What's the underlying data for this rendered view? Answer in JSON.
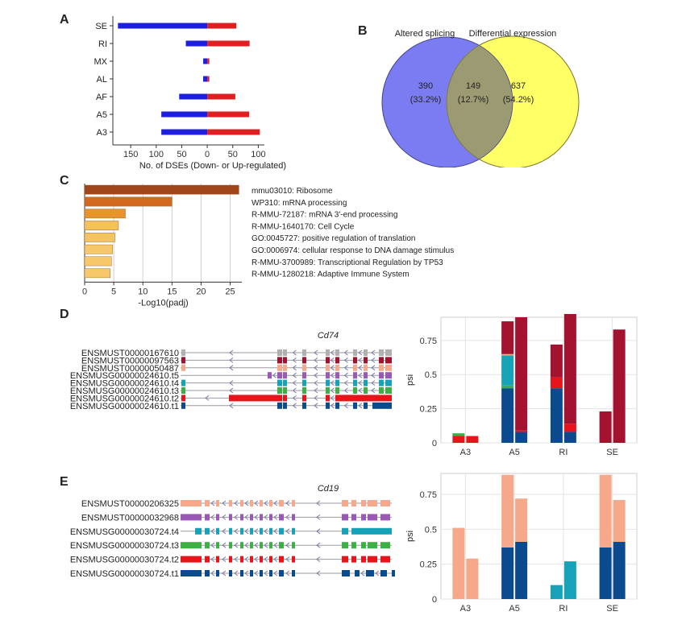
{
  "panels": {
    "A": "A",
    "B": "B",
    "C": "C",
    "D": "D",
    "E": "E"
  },
  "panelA": {
    "type": "bar",
    "categories": [
      "SE",
      "RI",
      "MX",
      "AL",
      "AF",
      "A5",
      "A3"
    ],
    "series": [
      {
        "name": "Down",
        "values": [
          -175,
          -42,
          -8,
          -8,
          -55,
          -90,
          -90
        ],
        "color": "#1f1fe0"
      },
      {
        "name": "Up",
        "values": [
          57,
          83,
          4,
          4,
          55,
          82,
          103
        ],
        "color": "#e02020"
      }
    ],
    "xticks": [
      -150,
      -100,
      -50,
      0,
      50,
      100
    ],
    "xtick_labels": [
      "150",
      "100",
      "50",
      "0",
      "50",
      "100"
    ],
    "xlim": [
      -185,
      112
    ],
    "xlabel": "No. of DSEs (Down- or Up-regulated)"
  },
  "panelB": {
    "type": "venn",
    "labels": [
      "Altered splicing",
      "Differential expression"
    ],
    "left_only": {
      "count": "390",
      "pct": "(33.2%)"
    },
    "overlap": {
      "count": "149",
      "pct": "(12.7%)"
    },
    "right_only": {
      "count": "637",
      "pct": "(54.2%)"
    },
    "colors": {
      "left": "#7b7bf2",
      "right": "#ffff66",
      "overlap": "#9b9a72"
    }
  },
  "panelC": {
    "type": "bar",
    "categories": [
      "mmu03010: Ribosome",
      "WP310: mRNA processing",
      "R-MMU-72187: mRNA 3'-end processing",
      "R-MMU-1640170: Cell Cycle",
      "GO:0045727: positive regulation of translation",
      "GO:0006974: cellular response to DNA damage stimulus",
      "R-MMU-3700989: Transcriptional Regulation by TP53",
      "R-MMU-1280218: Adaptive Immune System"
    ],
    "values": [
      26.5,
      15,
      7,
      5.8,
      5.2,
      4.8,
      4.6,
      4.4
    ],
    "colors": [
      "#a0461a",
      "#d2691e",
      "#e8932c",
      "#f5c15a",
      "#f5c462",
      "#f6c86a",
      "#f6c86a",
      "#f6c86a"
    ],
    "xticks": [
      0,
      5,
      10,
      15,
      20,
      25
    ],
    "xlim": [
      0,
      27
    ],
    "xlabel": "-Log10(padj)"
  },
  "panelD": {
    "gene": "Cd74",
    "transcripts": [
      {
        "label": "ENSMUST00000167610",
        "color": "#b0b0b0"
      },
      {
        "label": "ENSMUST00000097563",
        "color": "#a3122e"
      },
      {
        "label": "ENSMUST00000050487",
        "color": "#f5a98a"
      },
      {
        "label": "ENSMUSG00000024610.t5",
        "color": "#9b59b6"
      },
      {
        "label": "ENSMUSG00000024610.t4",
        "color": "#17a2b8"
      },
      {
        "label": "ENSMUSG00000024610.t3",
        "color": "#3cb043"
      },
      {
        "label": "ENSMUSG00000024610.t2",
        "color": "#e8141b"
      },
      {
        "label": "ENSMUSG00000024610.t1",
        "color": "#0b4a8c"
      }
    ],
    "chart": {
      "type": "bar",
      "ylabel": "psi",
      "categories": [
        "A3",
        "A5",
        "RI",
        "SE"
      ],
      "yticks": [
        0,
        0.25,
        0.5,
        0.75
      ],
      "ylim": [
        0,
        0.92
      ],
      "bars": [
        {
          "cat": "A3",
          "segments": [
            {
              "v": 0.05,
              "c": "#e8141b"
            },
            {
              "v": 0.02,
              "c": "#3cb043"
            }
          ]
        },
        {
          "cat": "A3",
          "segments": [
            {
              "v": 0.05,
              "c": "#e8141b"
            }
          ]
        },
        {
          "cat": "A5",
          "segments": [
            {
              "v": 0.4,
              "c": "#0b4a8c"
            },
            {
              "v": 0.02,
              "c": "#3cb043"
            },
            {
              "v": 0.22,
              "c": "#17a2b8"
            },
            {
              "v": 0.01,
              "c": "#f5a98a"
            },
            {
              "v": 0.24,
              "c": "#a3122e"
            }
          ]
        },
        {
          "cat": "A5",
          "segments": [
            {
              "v": 0.08,
              "c": "#0b4a8c"
            },
            {
              "v": 0.01,
              "c": "#e8141b"
            },
            {
              "v": 0.83,
              "c": "#a3122e"
            }
          ]
        },
        {
          "cat": "RI",
          "segments": [
            {
              "v": 0.4,
              "c": "#0b4a8c"
            },
            {
              "v": 0.08,
              "c": "#e8141b"
            },
            {
              "v": 0.24,
              "c": "#a3122e"
            }
          ]
        },
        {
          "cat": "RI",
          "segments": [
            {
              "v": 0.08,
              "c": "#0b4a8c"
            },
            {
              "v": 0.06,
              "c": "#e8141b"
            },
            {
              "v": 0.82,
              "c": "#a3122e"
            }
          ]
        },
        {
          "cat": "SE",
          "segments": [
            {
              "v": 0.23,
              "c": "#a3122e"
            }
          ]
        },
        {
          "cat": "SE",
          "segments": [
            {
              "v": 0.83,
              "c": "#a3122e"
            }
          ]
        }
      ]
    }
  },
  "panelE": {
    "gene": "Cd19",
    "transcripts": [
      {
        "label": "ENSMUST00000206325",
        "color": "#f5a98a"
      },
      {
        "label": "ENSMUST00000032968",
        "color": "#9b59b6"
      },
      {
        "label": "ENSMUSG00000030724.t4",
        "color": "#17a2b8"
      },
      {
        "label": "ENSMUSG00000030724.t3",
        "color": "#3cb043"
      },
      {
        "label": "ENSMUSG00000030724.t2",
        "color": "#e8141b"
      },
      {
        "label": "ENSMUSG00000030724.t1",
        "color": "#0b4a8c"
      }
    ],
    "chart": {
      "type": "bar",
      "ylabel": "psi",
      "categories": [
        "A3",
        "A5",
        "RI",
        "SE"
      ],
      "yticks": [
        0,
        0.25,
        0.5,
        0.75
      ],
      "ylim": [
        0,
        0.9
      ],
      "bars": [
        {
          "cat": "A3",
          "segments": [
            {
              "v": 0.51,
              "c": "#f5a98a"
            }
          ]
        },
        {
          "cat": "A3",
          "segments": [
            {
              "v": 0.29,
              "c": "#f5a98a"
            }
          ]
        },
        {
          "cat": "A5",
          "segments": [
            {
              "v": 0.37,
              "c": "#0b4a8c"
            },
            {
              "v": 0.52,
              "c": "#f5a98a"
            }
          ]
        },
        {
          "cat": "A5",
          "segments": [
            {
              "v": 0.41,
              "c": "#0b4a8c"
            },
            {
              "v": 0.31,
              "c": "#f5a98a"
            }
          ]
        },
        {
          "cat": "RI",
          "segments": [
            {
              "v": 0.1,
              "c": "#17a2b8"
            }
          ]
        },
        {
          "cat": "RI",
          "segments": [
            {
              "v": 0.27,
              "c": "#17a2b8"
            }
          ]
        },
        {
          "cat": "SE",
          "segments": [
            {
              "v": 0.37,
              "c": "#0b4a8c"
            },
            {
              "v": 0.52,
              "c": "#f5a98a"
            }
          ]
        },
        {
          "cat": "SE",
          "segments": [
            {
              "v": 0.41,
              "c": "#0b4a8c"
            },
            {
              "v": 0.3,
              "c": "#f5a98a"
            }
          ]
        }
      ]
    }
  }
}
